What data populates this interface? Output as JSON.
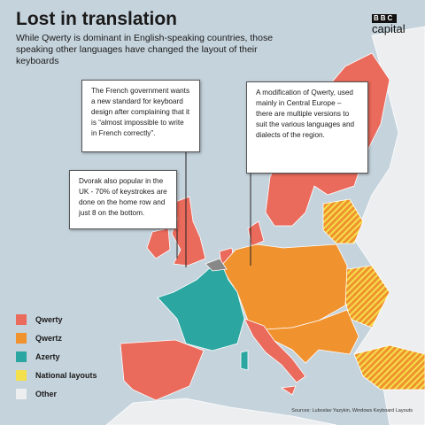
{
  "header": {
    "title": "Lost in translation",
    "subtitle": "While Qwerty is dominant in English-speaking countries, those speaking other languages have changed the layout of their keyboards"
  },
  "logo": {
    "top": "BBC",
    "bottom": "capital"
  },
  "annotations": [
    {
      "text": "The French government wants a new standard for keyboard design after complaining that it is “almost impossible to write in French correctly”."
    },
    {
      "text": "A modification of Qwerty, used mainly in Central Europe – there are multiple versions to suit the various languages and dialects of the region."
    },
    {
      "text": "Dvorak also popular in the UK - 70% of keystrokes are done on the home row and just 8 on the bottom."
    }
  ],
  "legend": {
    "items": [
      {
        "label": "Qwerty",
        "color": "#ea6a5c"
      },
      {
        "label": "Qwertz",
        "color": "#f0922e"
      },
      {
        "label": "Azerty",
        "color": "#2ba6a1"
      },
      {
        "label": "National layouts",
        "color": "#f4e04d"
      },
      {
        "label": "Other",
        "color": "#eceeef"
      }
    ]
  },
  "sources": "Sources: Luboslav Yazykin, Windows Keyboard Layouts"
}
